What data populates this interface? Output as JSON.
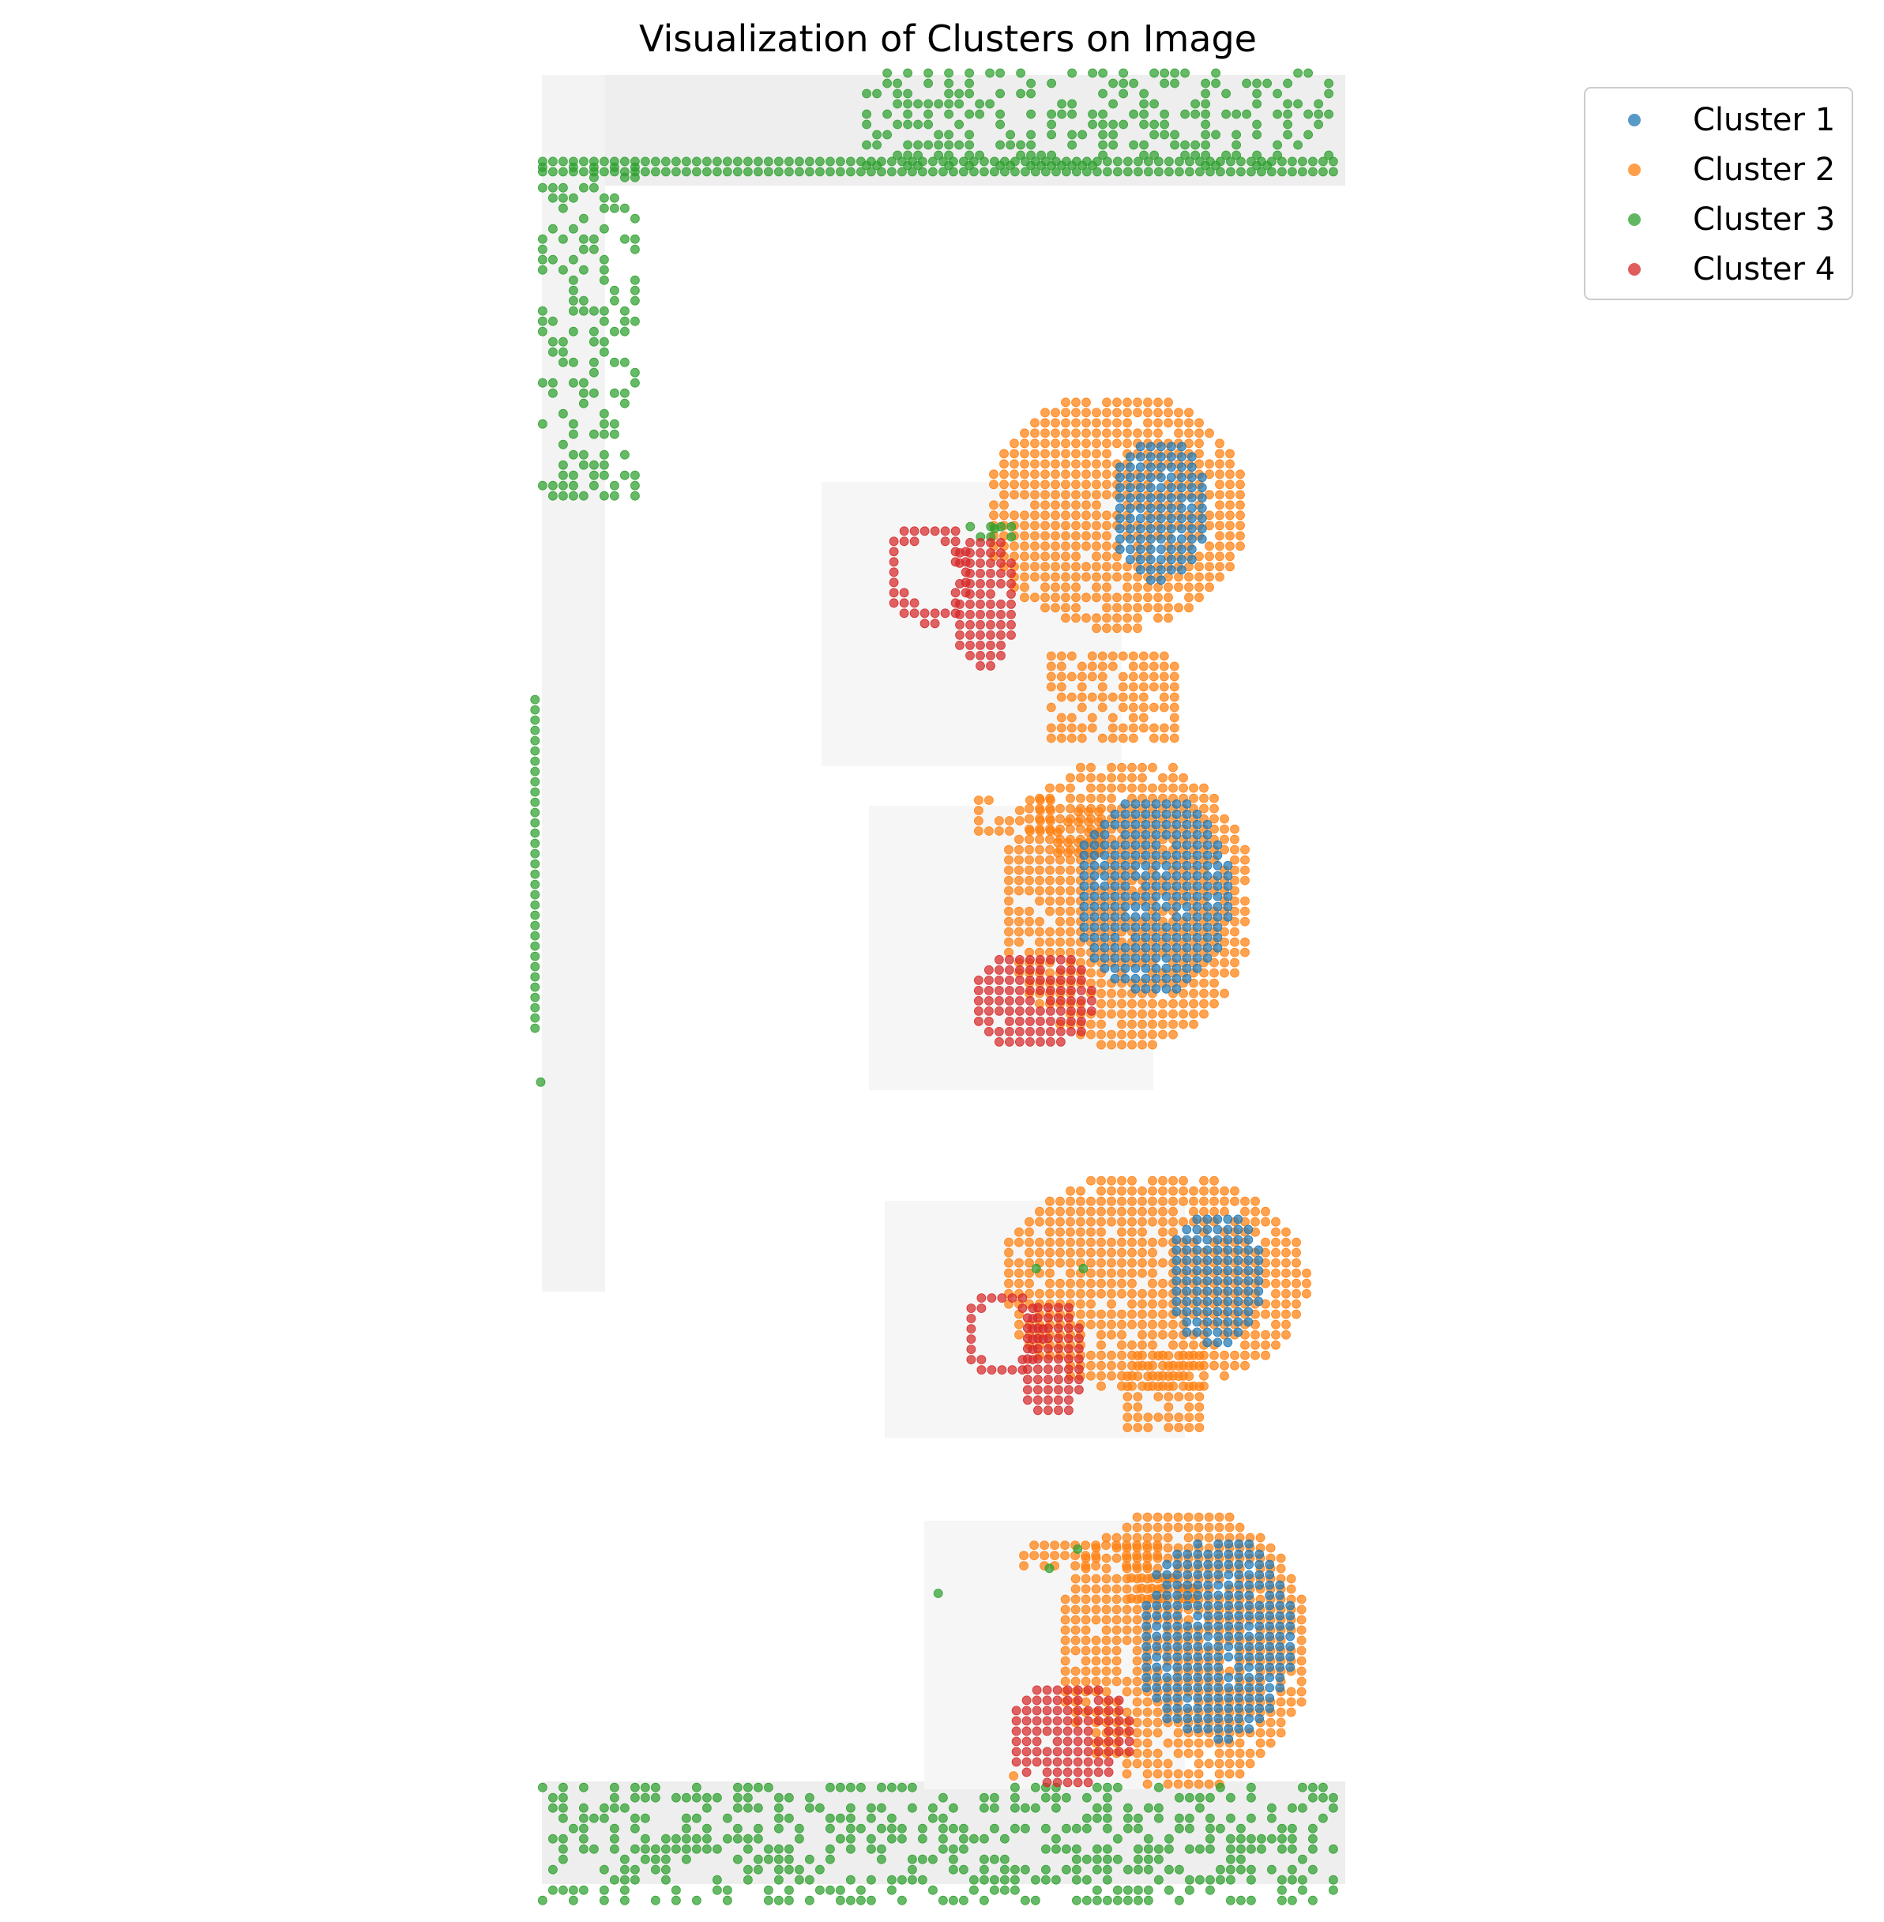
{
  "chart_data": {
    "type": "scatter",
    "title": "Visualization of Clusters on Image",
    "xlabel": "",
    "ylabel": "",
    "axes_visible": false,
    "grid": false,
    "background": "tissue-section-image",
    "legend": {
      "placement": "top-right, outside plot",
      "entries": [
        "Cluster 1",
        "Cluster 2",
        "Cluster 3",
        "Cluster 4"
      ]
    },
    "series": [
      {
        "name": "Cluster 1",
        "color": "#1f77b4",
        "regions": [
          {
            "section": 1,
            "shape": "core",
            "cx": 0.615,
            "cy": 0.265,
            "rx": 0.026,
            "ry": 0.038
          },
          {
            "section": 2,
            "shape": "core",
            "cx": 0.612,
            "cy": 0.465,
            "rx": 0.042,
            "ry": 0.052
          },
          {
            "section": 3,
            "shape": "core",
            "cx": 0.645,
            "cy": 0.665,
            "rx": 0.026,
            "ry": 0.036
          },
          {
            "section": 4,
            "shape": "core",
            "cx": 0.645,
            "cy": 0.852,
            "rx": 0.042,
            "ry": 0.054
          }
        ]
      },
      {
        "name": "Cluster 2",
        "color": "#ff7f0e",
        "regions": [
          {
            "section": 1,
            "shape": "rim",
            "cx": 0.592,
            "cy": 0.266,
            "rx": 0.07,
            "ry": 0.062
          },
          {
            "section": 1,
            "shape": "block",
            "cx": 0.592,
            "cy": 0.362,
            "rx": 0.034,
            "ry": 0.026
          },
          {
            "section": 1,
            "shape": "block",
            "cx": 0.538,
            "cy": 0.422,
            "rx": 0.024,
            "ry": 0.011
          },
          {
            "section": 1,
            "shape": "block",
            "cx": 0.57,
            "cy": 0.431,
            "rx": 0.014,
            "ry": 0.014
          },
          {
            "section": 2,
            "shape": "rim",
            "cx": 0.598,
            "cy": 0.47,
            "rx": 0.068,
            "ry": 0.076
          },
          {
            "section": 3,
            "shape": "rim",
            "cx": 0.612,
            "cy": 0.667,
            "rx": 0.082,
            "ry": 0.058
          },
          {
            "section": 3,
            "shape": "block",
            "cx": 0.615,
            "cy": 0.722,
            "rx": 0.022,
            "ry": 0.022
          },
          {
            "section": 4,
            "shape": "block",
            "cx": 0.578,
            "cy": 0.812,
            "rx": 0.04,
            "ry": 0.008
          },
          {
            "section": 4,
            "shape": "block",
            "cx": 0.615,
            "cy": 0.829,
            "rx": 0.02,
            "ry": 0.008
          },
          {
            "section": 4,
            "shape": "rim",
            "cx": 0.628,
            "cy": 0.858,
            "rx": 0.068,
            "ry": 0.074
          },
          {
            "section": 0,
            "shape": "point",
            "cx": 0.538,
            "cy": 0.924
          }
        ]
      },
      {
        "name": "Cluster 3",
        "color": "#2ca02c",
        "regions": [
          {
            "section": 0,
            "shape": "strip",
            "x0": 0.288,
            "x1": 0.708,
            "y0": 0.084,
            "y1": 0.091
          },
          {
            "section": 0,
            "shape": "scatter",
            "x0": 0.288,
            "x1": 0.34,
            "y0": 0.087,
            "y1": 0.258
          },
          {
            "section": 0,
            "shape": "scatter",
            "x0": 0.46,
            "x1": 0.708,
            "y0": 0.038,
            "y1": 0.09
          },
          {
            "section": 0,
            "shape": "strip",
            "x0": 0.284,
            "x1": 0.289,
            "y0": 0.364,
            "y1": 0.538
          },
          {
            "section": 0,
            "shape": "point",
            "cx": 0.287,
            "cy": 0.563
          },
          {
            "section": 0,
            "shape": "scatter",
            "x0": 0.288,
            "x1": 0.71,
            "y0": 0.93,
            "y1": 0.99
          },
          {
            "section": 1,
            "shape": "point",
            "cx": 0.528,
            "cy": 0.275
          },
          {
            "section": 1,
            "shape": "scatter",
            "x0": 0.515,
            "x1": 0.55,
            "y0": 0.274,
            "y1": 0.281
          },
          {
            "section": 3,
            "shape": "point",
            "cx": 0.55,
            "cy": 0.66
          },
          {
            "section": 3,
            "shape": "point",
            "cx": 0.575,
            "cy": 0.66
          },
          {
            "section": 4,
            "shape": "point",
            "cx": 0.572,
            "cy": 0.806
          },
          {
            "section": 4,
            "shape": "point",
            "cx": 0.557,
            "cy": 0.816
          },
          {
            "section": 4,
            "shape": "point",
            "cx": 0.498,
            "cy": 0.829
          }
        ]
      },
      {
        "name": "Cluster 4",
        "color": "#d62728",
        "regions": [
          {
            "section": 1,
            "shape": "ring",
            "cx": 0.493,
            "cy": 0.298,
            "rx": 0.024,
            "ry": 0.027
          },
          {
            "section": 1,
            "shape": "core",
            "cx": 0.522,
            "cy": 0.313,
            "rx": 0.018,
            "ry": 0.036
          },
          {
            "section": 2,
            "shape": "core",
            "cx": 0.548,
            "cy": 0.52,
            "rx": 0.034,
            "ry": 0.026
          },
          {
            "section": 3,
            "shape": "ring",
            "cx": 0.532,
            "cy": 0.694,
            "rx": 0.022,
            "ry": 0.024
          },
          {
            "section": 3,
            "shape": "core",
            "cx": 0.558,
            "cy": 0.707,
            "rx": 0.018,
            "ry": 0.032
          },
          {
            "section": 4,
            "shape": "core",
            "cx": 0.568,
            "cy": 0.902,
            "rx": 0.034,
            "ry": 0.028
          }
        ]
      }
    ],
    "sections": [
      {
        "section": 1,
        "center": [
          0.524,
          0.305
        ]
      },
      {
        "section": 2,
        "center": [
          0.524,
          0.496
        ]
      },
      {
        "section": 3,
        "center": [
          0.552,
          0.69
        ]
      },
      {
        "section": 4,
        "center": [
          0.566,
          0.88
        ]
      }
    ]
  },
  "colors": {
    "cluster1": "#1f77b4",
    "cluster2": "#ff7f0e",
    "cluster3": "#2ca02c",
    "cluster4": "#d62728",
    "tissue_background": "#f2f2f2"
  }
}
